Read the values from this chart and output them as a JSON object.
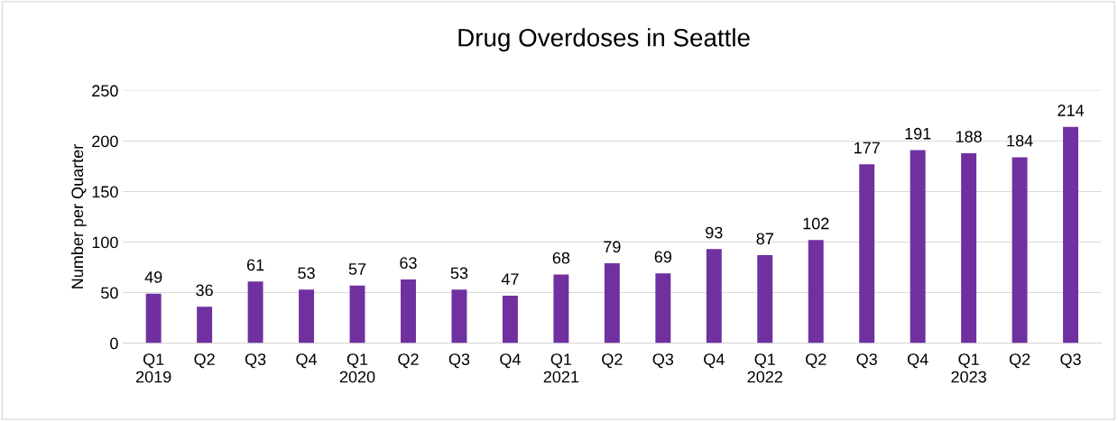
{
  "chart_data": {
    "type": "bar",
    "title": "Drug Overdoses in Seattle",
    "ylabel": "Number per Quarter",
    "categories": [
      "Q1\n2019",
      "Q2",
      "Q3",
      "Q4",
      "Q1\n2020",
      "Q2",
      "Q3",
      "Q4",
      "Q1\n2021",
      "Q2",
      "Q3",
      "Q4",
      "Q1\n2022",
      "Q2",
      "Q3",
      "Q4",
      "Q1\n2023",
      "Q2",
      "Q3"
    ],
    "values": [
      49,
      36,
      61,
      53,
      57,
      63,
      53,
      47,
      68,
      79,
      69,
      93,
      87,
      102,
      177,
      191,
      188,
      184,
      214
    ],
    "color": "#7030a0",
    "ylim": [
      0,
      250
    ],
    "yticks": [
      0,
      50,
      100,
      150,
      200,
      250
    ],
    "grid": "y",
    "data_labels": true
  }
}
